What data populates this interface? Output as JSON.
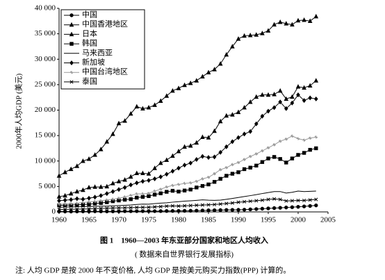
{
  "chart_data": {
    "type": "line",
    "y_label": "2000年人均GDP (美元)",
    "caption": "图 1　1960—2003 年东亚部分国家和地区人均收入",
    "source": "( 数据来自世界银行发展指标)",
    "note": "注: 人均 GDP 是按 2000 年不变价格, 人均 GDP 是按美元购买力指数(PPP) 计算的。",
    "x": [
      1960,
      1961,
      1962,
      1963,
      1964,
      1965,
      1966,
      1967,
      1968,
      1969,
      1970,
      1971,
      1972,
      1973,
      1974,
      1975,
      1976,
      1977,
      1978,
      1979,
      1980,
      1981,
      1982,
      1983,
      1984,
      1985,
      1986,
      1987,
      1988,
      1989,
      1990,
      1991,
      1992,
      1993,
      1994,
      1995,
      1996,
      1997,
      1998,
      1999,
      2000,
      2001,
      2002,
      2003
    ],
    "xlim": [
      1960,
      2005
    ],
    "xticks": [
      1960,
      1965,
      1970,
      1975,
      1980,
      1985,
      1990,
      1995,
      2000,
      2005
    ],
    "ylim": [
      0,
      40000
    ],
    "yticks": [
      0,
      {
        "value": 5000,
        "label": "5 000"
      },
      {
        "value": 10000,
        "label": "10 000"
      },
      {
        "value": 15000,
        "label": "15 000"
      },
      {
        "value": 20000,
        "label": "20 000"
      },
      {
        "value": 25000,
        "label": "25 000"
      },
      {
        "value": 30000,
        "label": "30 000"
      },
      {
        "value": 35000,
        "label": "35 000"
      },
      {
        "value": 40000,
        "label": "40 000"
      }
    ],
    "legend": "upper left",
    "series": [
      {
        "name": "中国",
        "color": "#000000",
        "marker": "circle",
        "values": [
          110,
          80,
          80,
          90,
          100,
          110,
          120,
          110,
          100,
          110,
          130,
          140,
          140,
          150,
          150,
          160,
          150,
          160,
          180,
          190,
          200,
          210,
          230,
          250,
          280,
          310,
          330,
          360,
          390,
          400,
          410,
          440,
          500,
          560,
          630,
          690,
          750,
          810,
          870,
          930,
          1000,
          1080,
          1170,
          1280
        ]
      },
      {
        "name": "中国香港地区",
        "color": "#000000",
        "marker": "triangle",
        "values": [
          3000,
          3200,
          3600,
          4000,
          4300,
          4800,
          4900,
          4900,
          5000,
          5600,
          6000,
          6300,
          6900,
          7600,
          7600,
          7500,
          8600,
          9600,
          10200,
          11000,
          11900,
          12800,
          13000,
          13600,
          14700,
          14600,
          15900,
          17800,
          18900,
          19100,
          19600,
          20500,
          21600,
          22600,
          23000,
          23000,
          23100,
          23800,
          22200,
          22600,
          24600,
          24400,
          24800,
          25800
        ]
      },
      {
        "name": "日本",
        "color": "#000000",
        "marker": "triangle",
        "values": [
          7100,
          7800,
          8400,
          9000,
          10000,
          10400,
          11200,
          12300,
          13800,
          15300,
          17400,
          17900,
          19300,
          20700,
          20300,
          20500,
          21000,
          21800,
          22800,
          23800,
          24300,
          24900,
          25300,
          25800,
          26600,
          27400,
          28000,
          29100,
          30900,
          32500,
          34000,
          34600,
          34700,
          34800,
          35100,
          35600,
          36800,
          37300,
          37000,
          36800,
          37600,
          37700,
          37500,
          38400
        ]
      },
      {
        "name": "韩国",
        "color": "#000000",
        "marker": "square",
        "values": [
          1300,
          1300,
          1350,
          1400,
          1450,
          1500,
          1650,
          1750,
          1900,
          2100,
          2250,
          2400,
          2500,
          2800,
          2950,
          3100,
          3400,
          3650,
          3950,
          4150,
          4000,
          4200,
          4400,
          4800,
          5100,
          5400,
          5900,
          6500,
          7100,
          7500,
          7800,
          8400,
          8700,
          9100,
          9800,
          10500,
          10800,
          10400,
          9700,
          10500,
          11200,
          11600,
          12200,
          12500
        ]
      },
      {
        "name": "马来西亚",
        "color": "#000000",
        "marker": "none",
        "values": [
          900,
          950,
          970,
          1000,
          1030,
          1070,
          1100,
          1120,
          1150,
          1200,
          1250,
          1300,
          1370,
          1470,
          1530,
          1520,
          1640,
          1720,
          1800,
          1920,
          2020,
          2110,
          2180,
          2270,
          2380,
          2310,
          2270,
          2320,
          2470,
          2640,
          2830,
          3020,
          3200,
          3390,
          3610,
          3800,
          4000,
          4000,
          3700,
          3850,
          4100,
          4000,
          4050,
          4100
        ]
      },
      {
        "name": "新加坡",
        "color": "#000000",
        "marker": "diamond",
        "values": [
          2200,
          2300,
          2400,
          2600,
          2500,
          2700,
          2900,
          3200,
          3600,
          4000,
          4400,
          4800,
          5300,
          5700,
          6000,
          6200,
          6500,
          6900,
          7400,
          8000,
          8600,
          9200,
          9600,
          10300,
          10900,
          10700,
          10800,
          11700,
          12800,
          13800,
          14600,
          15300,
          15800,
          17300,
          18800,
          19800,
          20500,
          21600,
          20300,
          21400,
          23000,
          21900,
          22400,
          22200
        ]
      },
      {
        "name": "中国台湾地区",
        "color": "#999999",
        "marker": "star",
        "values": [
          1500,
          1550,
          1600,
          1700,
          1850,
          1950,
          2050,
          2200,
          2350,
          2500,
          2700,
          2950,
          3250,
          3550,
          3550,
          3650,
          4100,
          4450,
          4900,
          5200,
          5400,
          5600,
          5700,
          6000,
          6500,
          6800,
          7500,
          8300,
          8700,
          9300,
          9700,
          10300,
          10900,
          11400,
          12000,
          12600,
          13200,
          13900,
          14300,
          14900,
          14400,
          14100,
          14500,
          14700
        ]
      },
      {
        "name": "泰国",
        "color": "#000000",
        "marker": "x",
        "values": [
          480,
          500,
          520,
          550,
          570,
          600,
          650,
          690,
          730,
          770,
          800,
          820,
          840,
          880,
          900,
          920,
          980,
          1050,
          1140,
          1180,
          1150,
          1200,
          1250,
          1300,
          1350,
          1400,
          1450,
          1550,
          1650,
          1750,
          1900,
          2000,
          2100,
          2200,
          2300,
          2450,
          2550,
          2450,
          2150,
          2200,
          2250,
          2250,
          2350,
          2450
        ]
      }
    ]
  }
}
